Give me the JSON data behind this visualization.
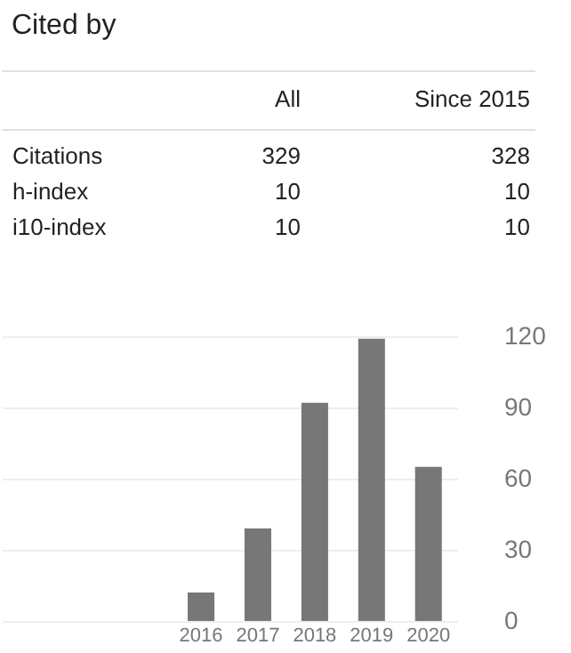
{
  "chart_data": [
    {
      "type": "other",
      "title": "Cited by",
      "annotations": [
        "All",
        "Since 2015",
        "Citations",
        "329",
        "328",
        "h-index",
        "10",
        "10",
        "i10-index",
        "10",
        "10"
      ]
    },
    {
      "type": "bar",
      "categories": [
        null,
        null,
        null,
        "2016",
        "2017",
        "2018",
        "2019",
        "2020"
      ],
      "values": [
        null,
        null,
        null,
        12,
        39,
        92,
        119,
        65
      ],
      "color": "#777777",
      "ylim": [
        0,
        120
      ],
      "yticks": [
        0,
        30,
        60,
        90,
        120
      ],
      "grid": "y"
    }
  ]
}
